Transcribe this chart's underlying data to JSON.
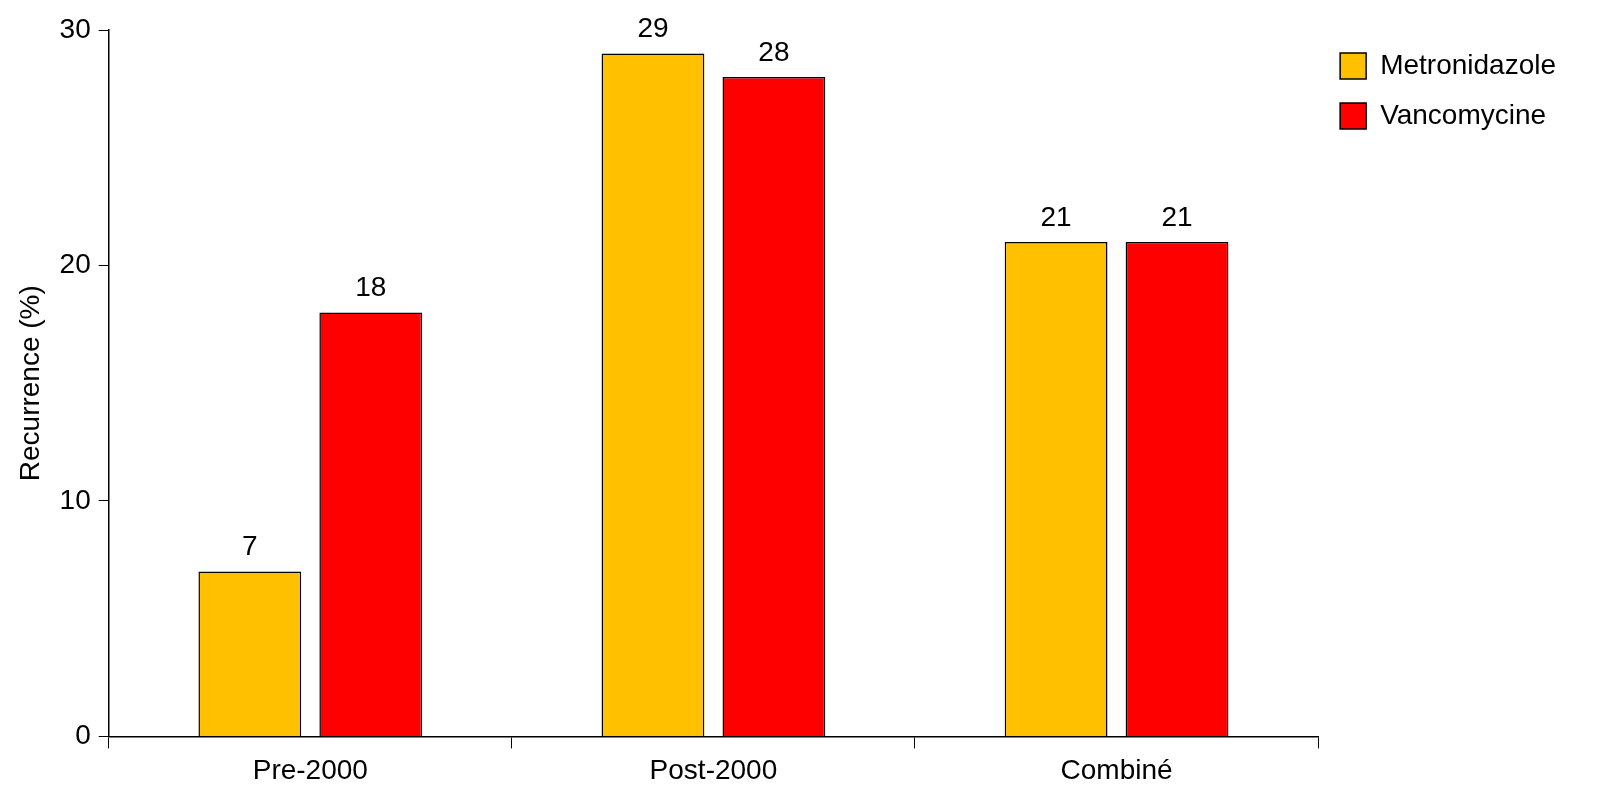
{
  "chart_data": {
    "type": "bar",
    "ylabel": "Recurrence (%)",
    "categories": [
      "Pre-2000",
      "Post-2000",
      "Combiné"
    ],
    "series": [
      {
        "name": "Metronidazole",
        "color": "#ffc000",
        "values": [
          7,
          29,
          21
        ]
      },
      {
        "name": "Vancomycine",
        "color": "#ff0000",
        "values": [
          18,
          28,
          21
        ]
      }
    ],
    "ylim": [
      0,
      30
    ],
    "yticks": [
      0,
      10,
      20,
      30
    ],
    "grid": false,
    "legend": "right",
    "data_labels": true
  }
}
